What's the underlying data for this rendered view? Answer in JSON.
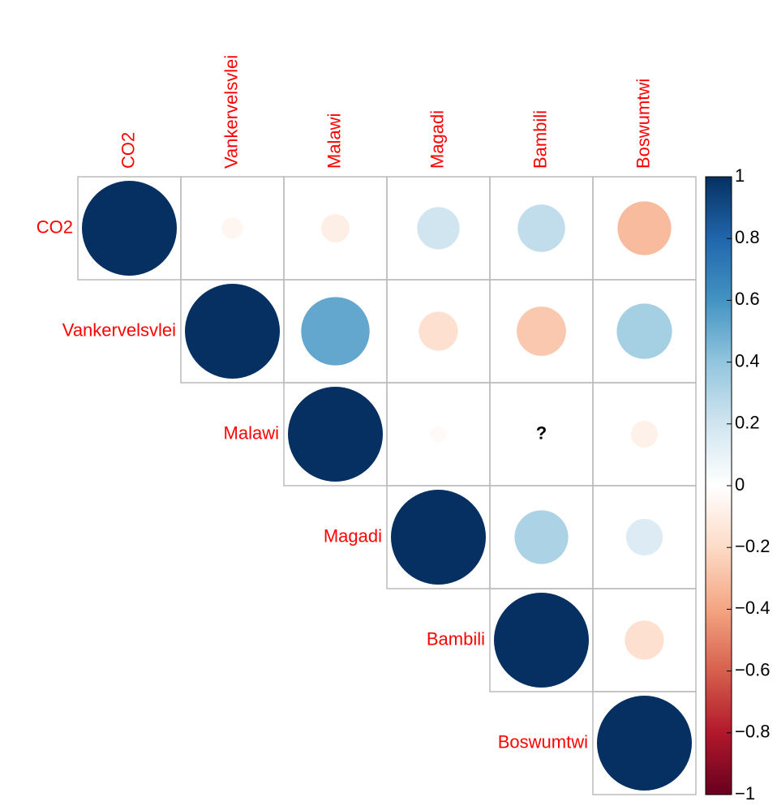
{
  "chart_data": {
    "type": "corrplot",
    "variables": [
      "CO2",
      "Vankervelsvlei",
      "Malawi",
      "Magadi",
      "Bambili",
      "Boswumtwi"
    ],
    "matrix": [
      [
        1,
        -0.05,
        -0.09,
        0.2,
        0.25,
        -0.32
      ],
      [
        null,
        1,
        0.52,
        -0.17,
        -0.27,
        0.34
      ],
      [
        null,
        null,
        1,
        -0.03,
        null,
        -0.08
      ],
      [
        null,
        null,
        null,
        1,
        0.32,
        0.15
      ],
      [
        null,
        null,
        null,
        null,
        1,
        -0.17
      ],
      [
        null,
        null,
        null,
        null,
        null,
        1
      ]
    ],
    "na_label": "?",
    "label_color": "#ff0000",
    "colors": [
      "#67001F",
      "#B2182B",
      "#D6604D",
      "#F4A582",
      "#FDDBC7",
      "#FFFFFF",
      "#D1E5F0",
      "#92C5DE",
      "#4393C3",
      "#2166AC",
      "#053061"
    ],
    "clim": [
      -1,
      1
    ],
    "cticks": [
      {
        "value": -1,
        "label": "−1"
      },
      {
        "value": -0.8,
        "label": "−0.8"
      },
      {
        "value": -0.6,
        "label": "−0.6"
      },
      {
        "value": -0.4,
        "label": "−0.4"
      },
      {
        "value": -0.2,
        "label": "−0.2"
      },
      0,
      0.2,
      0.4,
      0.6,
      0.8,
      1
    ]
  }
}
